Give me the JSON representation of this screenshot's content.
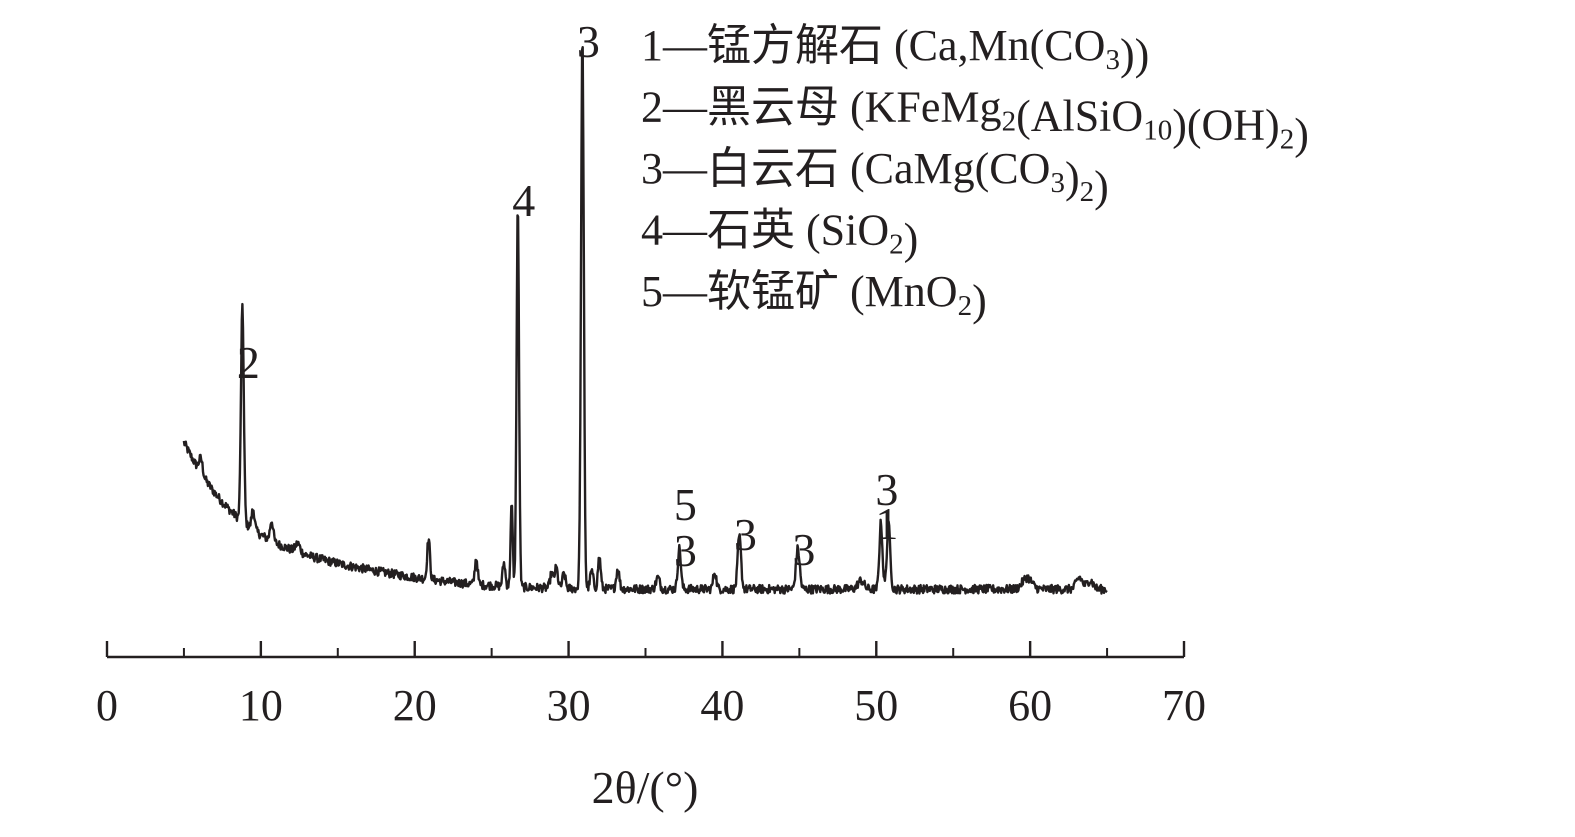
{
  "chart_data": {
    "type": "line",
    "title": "",
    "xlabel": "2θ/(°)",
    "ylabel": "",
    "xlim": [
      0,
      70
    ],
    "xticks": [
      0,
      10,
      20,
      30,
      40,
      50,
      60,
      70
    ],
    "tick_labels": [
      "0",
      "10",
      "20",
      "30",
      "40",
      "50",
      "60",
      "70"
    ],
    "legend_position": "top-right",
    "grid": false,
    "colors": {
      "line": "#231f20",
      "text": "#231f20"
    },
    "legend": [
      {
        "number": "1",
        "dash": "—",
        "name": "锰方解石",
        "formula": [
          {
            "t": " (Ca,Mn(CO"
          },
          {
            "t": "3",
            "sub": true
          },
          {
            "t": "))"
          }
        ]
      },
      {
        "number": "2",
        "dash": "—",
        "name": "黑云母",
        "formula": [
          {
            "t": " (KFeMg"
          },
          {
            "t": "2",
            "sub": true
          },
          {
            "t": "(AlSiO"
          },
          {
            "t": "10",
            "sub": true
          },
          {
            "t": ")(OH)"
          },
          {
            "t": "2",
            "sub": true
          },
          {
            "t": ")"
          }
        ]
      },
      {
        "number": "3",
        "dash": "—",
        "name": "白云石",
        "formula": [
          {
            "t": " (CaMg(CO"
          },
          {
            "t": "3",
            "sub": true
          },
          {
            "t": ")"
          },
          {
            "t": "2",
            "sub": true
          },
          {
            "t": ")"
          }
        ]
      },
      {
        "number": "4",
        "dash": "—",
        "name": "石英",
        "formula": [
          {
            "t": " (SiO"
          },
          {
            "t": "2",
            "sub": true
          },
          {
            "t": ")"
          }
        ]
      },
      {
        "number": "5",
        "dash": "—",
        "name": "软锰矿",
        "formula": [
          {
            "t": " (MnO"
          },
          {
            "t": "2",
            "sub": true
          },
          {
            "t": ")"
          }
        ]
      }
    ],
    "peak_labels": [
      {
        "x": 8.8,
        "text": "2"
      },
      {
        "x": 26.7,
        "text": "4"
      },
      {
        "x": 30.9,
        "text": "3"
      },
      {
        "x": 37.2,
        "text": "5"
      },
      {
        "x": 37.2,
        "text": "3"
      },
      {
        "x": 41.1,
        "text": "3"
      },
      {
        "x": 44.9,
        "text": "3"
      },
      {
        "x": 50.3,
        "text": "3"
      },
      {
        "x": 50.3,
        "text": "1"
      }
    ],
    "background": {
      "x_start": 5,
      "x_end": 65,
      "level": 0.12,
      "curve_amp": 0.5,
      "decay": 4.5
    },
    "peaks": [
      {
        "x": 6.1,
        "height": 0.05,
        "width": 0.12
      },
      {
        "x": 8.8,
        "height": 0.75,
        "width": 0.09
      },
      {
        "x": 9.5,
        "height": 0.07,
        "width": 0.1
      },
      {
        "x": 10.7,
        "height": 0.07,
        "width": 0.1
      },
      {
        "x": 12.4,
        "height": 0.03,
        "width": 0.15
      },
      {
        "x": 20.9,
        "height": 0.14,
        "width": 0.09
      },
      {
        "x": 24.0,
        "height": 0.09,
        "width": 0.09
      },
      {
        "x": 25.8,
        "height": 0.08,
        "width": 0.09
      },
      {
        "x": 26.3,
        "height": 0.28,
        "width": 0.07
      },
      {
        "x": 26.7,
        "height": 1.32,
        "width": 0.08
      },
      {
        "x": 28.9,
        "height": 0.05,
        "width": 0.1
      },
      {
        "x": 29.2,
        "height": 0.07,
        "width": 0.1
      },
      {
        "x": 29.7,
        "height": 0.05,
        "width": 0.1
      },
      {
        "x": 30.9,
        "height": 1.9,
        "width": 0.09
      },
      {
        "x": 31.5,
        "height": 0.06,
        "width": 0.1
      },
      {
        "x": 32.0,
        "height": 0.11,
        "width": 0.09
      },
      {
        "x": 33.2,
        "height": 0.07,
        "width": 0.1
      },
      {
        "x": 35.8,
        "height": 0.04,
        "width": 0.12
      },
      {
        "x": 37.2,
        "height": 0.14,
        "width": 0.1
      },
      {
        "x": 39.5,
        "height": 0.06,
        "width": 0.1
      },
      {
        "x": 41.1,
        "height": 0.18,
        "width": 0.11
      },
      {
        "x": 44.9,
        "height": 0.14,
        "width": 0.12
      },
      {
        "x": 49.0,
        "height": 0.03,
        "width": 0.2
      },
      {
        "x": 50.3,
        "height": 0.23,
        "width": 0.1
      },
      {
        "x": 50.8,
        "height": 0.22,
        "width": 0.11
      },
      {
        "x": 59.8,
        "height": 0.04,
        "width": 0.3
      },
      {
        "x": 63.2,
        "height": 0.04,
        "width": 0.2
      },
      {
        "x": 63.9,
        "height": 0.03,
        "width": 0.2
      }
    ]
  }
}
